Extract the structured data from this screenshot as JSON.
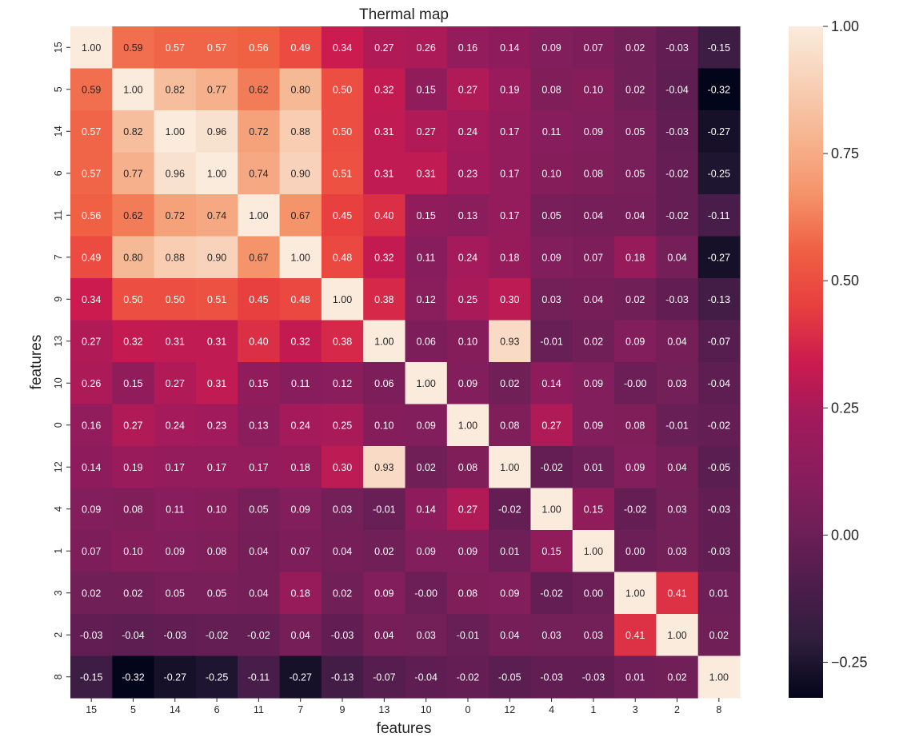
{
  "chart_data": {
    "type": "heatmap",
    "title": "Thermal map",
    "xlabel": "features",
    "ylabel": "features",
    "x_categories": [
      "15",
      "5",
      "14",
      "6",
      "11",
      "7",
      "9",
      "13",
      "10",
      "0",
      "12",
      "4",
      "1",
      "3",
      "2",
      "8"
    ],
    "y_categories": [
      "15",
      "5",
      "14",
      "6",
      "11",
      "7",
      "9",
      "13",
      "10",
      "0",
      "12",
      "4",
      "1",
      "3",
      "2",
      "8"
    ],
    "values": [
      [
        1.0,
        0.59,
        0.57,
        0.57,
        0.56,
        0.49,
        0.34,
        0.27,
        0.26,
        0.16,
        0.14,
        0.09,
        0.07,
        0.02,
        -0.03,
        -0.15
      ],
      [
        0.59,
        1.0,
        0.82,
        0.77,
        0.62,
        0.8,
        0.5,
        0.32,
        0.15,
        0.27,
        0.19,
        0.08,
        0.1,
        0.02,
        -0.04,
        -0.32
      ],
      [
        0.57,
        0.82,
        1.0,
        0.96,
        0.72,
        0.88,
        0.5,
        0.31,
        0.27,
        0.24,
        0.17,
        0.11,
        0.09,
        0.05,
        -0.03,
        -0.27
      ],
      [
        0.57,
        0.77,
        0.96,
        1.0,
        0.74,
        0.9,
        0.51,
        0.31,
        0.31,
        0.23,
        0.17,
        0.1,
        0.08,
        0.05,
        -0.02,
        -0.25
      ],
      [
        0.56,
        0.62,
        0.72,
        0.74,
        1.0,
        0.67,
        0.45,
        0.4,
        0.15,
        0.13,
        0.17,
        0.05,
        0.04,
        0.04,
        -0.02,
        -0.11
      ],
      [
        0.49,
        0.8,
        0.88,
        0.9,
        0.67,
        1.0,
        0.48,
        0.32,
        0.11,
        0.24,
        0.18,
        0.09,
        0.07,
        0.18,
        0.04,
        -0.27
      ],
      [
        0.34,
        0.5,
        0.5,
        0.51,
        0.45,
        0.48,
        1.0,
        0.38,
        0.12,
        0.25,
        0.3,
        0.03,
        0.04,
        0.02,
        -0.03,
        -0.13
      ],
      [
        0.27,
        0.32,
        0.31,
        0.31,
        0.4,
        0.32,
        0.38,
        1.0,
        0.06,
        0.1,
        0.93,
        -0.01,
        0.02,
        0.09,
        0.04,
        -0.07
      ],
      [
        0.26,
        0.15,
        0.27,
        0.31,
        0.15,
        0.11,
        0.12,
        0.06,
        1.0,
        0.09,
        0.02,
        0.14,
        0.09,
        -0.0,
        0.03,
        -0.04
      ],
      [
        0.16,
        0.27,
        0.24,
        0.23,
        0.13,
        0.24,
        0.25,
        0.1,
        0.09,
        1.0,
        0.08,
        0.27,
        0.09,
        0.08,
        -0.01,
        -0.02
      ],
      [
        0.14,
        0.19,
        0.17,
        0.17,
        0.17,
        0.18,
        0.3,
        0.93,
        0.02,
        0.08,
        1.0,
        -0.02,
        0.01,
        0.09,
        0.04,
        -0.05
      ],
      [
        0.09,
        0.08,
        0.11,
        0.1,
        0.05,
        0.09,
        0.03,
        -0.01,
        0.14,
        0.27,
        -0.02,
        1.0,
        0.15,
        -0.02,
        0.03,
        -0.03
      ],
      [
        0.07,
        0.1,
        0.09,
        0.08,
        0.04,
        0.07,
        0.04,
        0.02,
        0.09,
        0.09,
        0.01,
        0.15,
        1.0,
        0.0,
        0.03,
        -0.03
      ],
      [
        0.02,
        0.02,
        0.05,
        0.05,
        0.04,
        0.18,
        0.02,
        0.09,
        -0.0,
        0.08,
        0.09,
        -0.02,
        0.0,
        1.0,
        0.41,
        0.01
      ],
      [
        -0.03,
        -0.04,
        -0.03,
        -0.02,
        -0.02,
        0.04,
        -0.03,
        0.04,
        0.03,
        -0.01,
        0.04,
        0.03,
        0.03,
        0.41,
        1.0,
        0.02
      ],
      [
        -0.15,
        -0.32,
        -0.27,
        -0.25,
        -0.11,
        -0.27,
        -0.13,
        -0.07,
        -0.04,
        -0.02,
        -0.05,
        -0.03,
        -0.03,
        0.01,
        0.02,
        1.0
      ]
    ],
    "labels": [
      [
        "1.00",
        "0.59",
        "0.57",
        "0.57",
        "0.56",
        "0.49",
        "0.34",
        "0.27",
        "0.26",
        "0.16",
        "0.14",
        "0.09",
        "0.07",
        "0.02",
        "-0.03",
        "-0.15"
      ],
      [
        "0.59",
        "1.00",
        "0.82",
        "0.77",
        "0.62",
        "0.80",
        "0.50",
        "0.32",
        "0.15",
        "0.27",
        "0.19",
        "0.08",
        "0.10",
        "0.02",
        "-0.04",
        "-0.32"
      ],
      [
        "0.57",
        "0.82",
        "1.00",
        "0.96",
        "0.72",
        "0.88",
        "0.50",
        "0.31",
        "0.27",
        "0.24",
        "0.17",
        "0.11",
        "0.09",
        "0.05",
        "-0.03",
        "-0.27"
      ],
      [
        "0.57",
        "0.77",
        "0.96",
        "1.00",
        "0.74",
        "0.90",
        "0.51",
        "0.31",
        "0.31",
        "0.23",
        "0.17",
        "0.10",
        "0.08",
        "0.05",
        "-0.02",
        "-0.25"
      ],
      [
        "0.56",
        "0.62",
        "0.72",
        "0.74",
        "1.00",
        "0.67",
        "0.45",
        "0.40",
        "0.15",
        "0.13",
        "0.17",
        "0.05",
        "0.04",
        "0.04",
        "-0.02",
        "-0.11"
      ],
      [
        "0.49",
        "0.80",
        "0.88",
        "0.90",
        "0.67",
        "1.00",
        "0.48",
        "0.32",
        "0.11",
        "0.24",
        "0.18",
        "0.09",
        "0.07",
        "0.18",
        "0.04",
        "-0.27"
      ],
      [
        "0.34",
        "0.50",
        "0.50",
        "0.51",
        "0.45",
        "0.48",
        "1.00",
        "0.38",
        "0.12",
        "0.25",
        "0.30",
        "0.03",
        "0.04",
        "0.02",
        "-0.03",
        "-0.13"
      ],
      [
        "0.27",
        "0.32",
        "0.31",
        "0.31",
        "0.40",
        "0.32",
        "0.38",
        "1.00",
        "0.06",
        "0.10",
        "0.93",
        "-0.01",
        "0.02",
        "0.09",
        "0.04",
        "-0.07"
      ],
      [
        "0.26",
        "0.15",
        "0.27",
        "0.31",
        "0.15",
        "0.11",
        "0.12",
        "0.06",
        "1.00",
        "0.09",
        "0.02",
        "0.14",
        "0.09",
        "-0.00",
        "0.03",
        "-0.04"
      ],
      [
        "0.16",
        "0.27",
        "0.24",
        "0.23",
        "0.13",
        "0.24",
        "0.25",
        "0.10",
        "0.09",
        "1.00",
        "0.08",
        "0.27",
        "0.09",
        "0.08",
        "-0.01",
        "-0.02"
      ],
      [
        "0.14",
        "0.19",
        "0.17",
        "0.17",
        "0.17",
        "0.18",
        "0.30",
        "0.93",
        "0.02",
        "0.08",
        "1.00",
        "-0.02",
        "0.01",
        "0.09",
        "0.04",
        "-0.05"
      ],
      [
        "0.09",
        "0.08",
        "0.11",
        "0.10",
        "0.05",
        "0.09",
        "0.03",
        "-0.01",
        "0.14",
        "0.27",
        "-0.02",
        "1.00",
        "0.15",
        "-0.02",
        "0.03",
        "-0.03"
      ],
      [
        "0.07",
        "0.10",
        "0.09",
        "0.08",
        "0.04",
        "0.07",
        "0.04",
        "0.02",
        "0.09",
        "0.09",
        "0.01",
        "0.15",
        "1.00",
        "0.00",
        "0.03",
        "-0.03"
      ],
      [
        "0.02",
        "0.02",
        "0.05",
        "0.05",
        "0.04",
        "0.18",
        "0.02",
        "0.09",
        "-0.00",
        "0.08",
        "0.09",
        "-0.02",
        "0.00",
        "1.00",
        "0.41",
        "0.01"
      ],
      [
        "-0.03",
        "-0.04",
        "-0.03",
        "-0.02",
        "-0.02",
        "0.04",
        "-0.03",
        "0.04",
        "0.03",
        "-0.01",
        "0.04",
        "0.03",
        "0.03",
        "0.41",
        "1.00",
        "0.02"
      ],
      [
        "-0.15",
        "-0.32",
        "-0.27",
        "-0.25",
        "-0.11",
        "-0.27",
        "-0.13",
        "-0.07",
        "-0.04",
        "-0.02",
        "-0.05",
        "-0.03",
        "-0.03",
        "0.01",
        "0.02",
        "1.00"
      ]
    ],
    "colorbar": {
      "colormap": "rocket",
      "vmin": -0.32,
      "vmax": 1.0,
      "ticks": [
        1.0,
        0.75,
        0.5,
        0.25,
        0.0,
        -0.25
      ],
      "tick_labels": [
        "1.00",
        "0.75",
        "0.50",
        "0.25",
        "0.00",
        "−0.25"
      ]
    },
    "colormap_stops": [
      "#03051a",
      "#2e1e3c",
      "#4c1d4b",
      "#6e1f57",
      "#8a1d5c",
      "#a11a5b",
      "#cb1b4f",
      "#e83f3f",
      "#f06043",
      "#f5936a",
      "#f6b48f",
      "#f8d0b6",
      "#faebdd"
    ],
    "dark_text_color": "#262626",
    "light_text_color": "#ffffff"
  }
}
